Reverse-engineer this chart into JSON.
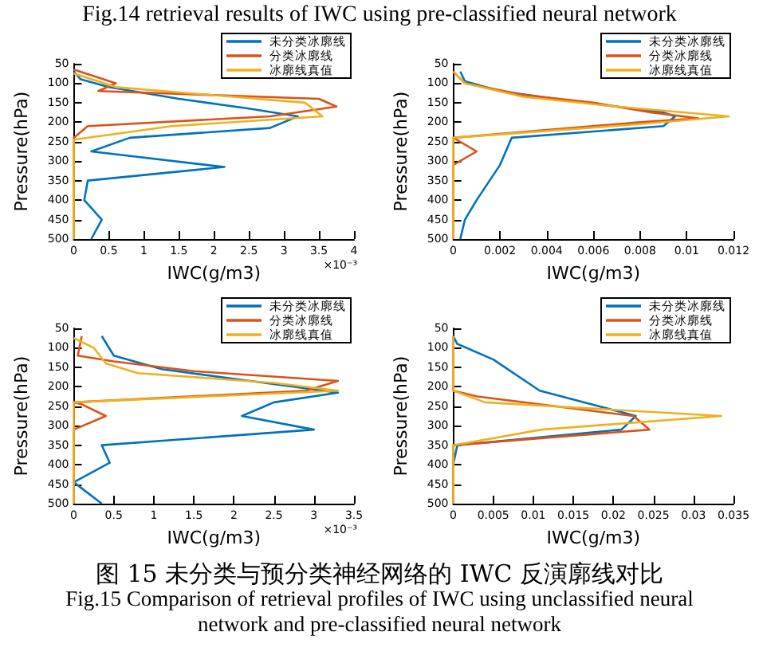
{
  "chart_data": [
    {
      "type": "line",
      "title": "Fig.14 retrieval results of IWC using pre-classified neural network",
      "xlabel": "IWC(g/m3)",
      "ylabel": "Pressure(hPa)",
      "annotations": [
        "×10⁻³"
      ],
      "xlim": [
        0,
        4
      ],
      "xticks": [
        0,
        0.5,
        1,
        1.5,
        2,
        2.5,
        3,
        3.5,
        4
      ],
      "ylim": [
        500,
        50
      ],
      "yticks": [
        50,
        100,
        150,
        200,
        250,
        300,
        350,
        400,
        450,
        500
      ],
      "legend": "top right",
      "grid": false,
      "series": [
        {
          "name": "未分类冰廓线",
          "color": "#0072bd",
          "x": [
            0,
            0.1,
            0.5,
            1.5,
            2.5,
            3.2,
            2.8,
            0.8,
            0.25,
            2.15,
            0.2,
            0.15,
            0.4,
            0.25
          ],
          "values": [
            70,
            90,
            110,
            140,
            165,
            185,
            215,
            240,
            275,
            315,
            350,
            400,
            450,
            500
          ]
        },
        {
          "name": "分类冰廓线",
          "color": "#d95319",
          "x": [
            0,
            0.6,
            0.35,
            3.5,
            3.75,
            2.8,
            0.2,
            0,
            0
          ],
          "values": [
            65,
            100,
            120,
            140,
            160,
            185,
            210,
            240,
            500
          ]
        },
        {
          "name": "冰廓线真值",
          "color": "#edb120",
          "x": [
            0,
            0.6,
            3.3,
            3.55,
            1.4,
            0,
            0
          ],
          "values": [
            75,
            110,
            150,
            185,
            210,
            245,
            500
          ]
        }
      ]
    },
    {
      "type": "line",
      "xlabel": "IWC(g/m3)",
      "ylabel": "Pressure(hPa)",
      "xlim": [
        0,
        0.012
      ],
      "xticks": [
        0,
        0.002,
        0.004,
        0.006,
        0.008,
        0.01,
        0.012
      ],
      "ylim": [
        500,
        50
      ],
      "yticks": [
        50,
        100,
        150,
        200,
        250,
        300,
        350,
        400,
        450,
        500
      ],
      "legend": "top right",
      "grid": false,
      "series": [
        {
          "name": "未分类冰廓线",
          "color": "#0072bd",
          "x": [
            0.0003,
            0.0005,
            0.002,
            0.005,
            0.009,
            0.0095,
            0.009,
            0.0025,
            0.002,
            0.001,
            0.0005,
            0.0003
          ],
          "values": [
            70,
            95,
            120,
            145,
            175,
            185,
            210,
            240,
            310,
            400,
            450,
            500
          ]
        },
        {
          "name": "分类冰廓线",
          "color": "#d95319",
          "x": [
            0,
            0.0005,
            0.003,
            0.006,
            0.0085,
            0.0105,
            0.008,
            0,
            0.001,
            0,
            0
          ],
          "values": [
            70,
            100,
            130,
            150,
            175,
            190,
            200,
            240,
            275,
            310,
            500
          ]
        },
        {
          "name": "冰廓线真值",
          "color": "#edb120",
          "x": [
            0,
            0.0005,
            0.003,
            0.007,
            0.0118,
            0.008,
            0,
            0
          ],
          "values": [
            70,
            100,
            135,
            160,
            185,
            205,
            240,
            500
          ]
        }
      ]
    },
    {
      "type": "line",
      "xlabel": "IWC(g/m3)",
      "ylabel": "Pressure(hPa)",
      "annotations": [
        "×10⁻³"
      ],
      "xlim": [
        0,
        3.5
      ],
      "xticks": [
        0,
        0.5,
        1,
        1.5,
        2,
        2.5,
        3,
        3.5
      ],
      "ylim": [
        500,
        50
      ],
      "yticks": [
        50,
        100,
        150,
        200,
        250,
        300,
        350,
        400,
        450,
        500
      ],
      "legend": "top right",
      "grid": false,
      "series": [
        {
          "name": "未分类冰廓线",
          "color": "#0072bd",
          "x": [
            0.35,
            0.5,
            1.1,
            2.2,
            3.3,
            2.5,
            2.1,
            3.0,
            0.35,
            0.45,
            0,
            0.35
          ],
          "values": [
            70,
            120,
            155,
            185,
            215,
            240,
            275,
            310,
            350,
            395,
            445,
            500
          ]
        },
        {
          "name": "分类冰廓线",
          "color": "#d95319",
          "x": [
            0.1,
            0.05,
            0.5,
            1.5,
            3.3,
            2.9,
            0,
            0.1,
            0.4,
            0,
            0
          ],
          "values": [
            70,
            120,
            135,
            160,
            185,
            210,
            240,
            245,
            275,
            310,
            500
          ]
        },
        {
          "name": "冰廓线真值",
          "color": "#edb120",
          "x": [
            0,
            0.25,
            0.4,
            0.8,
            2.5,
            3.3,
            0,
            0
          ],
          "values": [
            75,
            100,
            140,
            165,
            190,
            210,
            240,
            500
          ]
        }
      ]
    },
    {
      "type": "line",
      "xlabel": "IWC(g/m3)",
      "ylabel": "Pressure(hPa)",
      "annotations": [
        "图 15 未分类与预分类神经网络的 IWC 反演廓线对比",
        "Fig.15 Comparison of retrieval profiles of IWC using unclassified neural network and pre-classified neural network"
      ],
      "xlim": [
        0,
        0.035
      ],
      "xticks": [
        0,
        0.005,
        0.01,
        0.015,
        0.02,
        0.025,
        0.03,
        0.035
      ],
      "ylim": [
        500,
        50
      ],
      "yticks": [
        50,
        100,
        150,
        200,
        250,
        300,
        350,
        400,
        450,
        500
      ],
      "legend": "top right",
      "grid": false,
      "series": [
        {
          "name": "未分类冰廓线",
          "color": "#0072bd",
          "x": [
            0,
            0.0005,
            0.005,
            0.0108,
            0.0228,
            0.021,
            0.0005,
            0,
            0
          ],
          "values": [
            70,
            90,
            130,
            210,
            275,
            310,
            350,
            400,
            500
          ]
        },
        {
          "name": "分类冰廓线",
          "color": "#d95319",
          "x": [
            0,
            0,
            0.003,
            0.0225,
            0.0245,
            0,
            0
          ],
          "values": [
            70,
            210,
            225,
            275,
            310,
            350,
            500
          ]
        },
        {
          "name": "冰廓线真值",
          "color": "#edb120",
          "x": [
            0,
            0,
            0.004,
            0.0335,
            0.011,
            0,
            0
          ],
          "values": [
            70,
            210,
            240,
            275,
            310,
            350,
            500
          ]
        }
      ]
    }
  ]
}
